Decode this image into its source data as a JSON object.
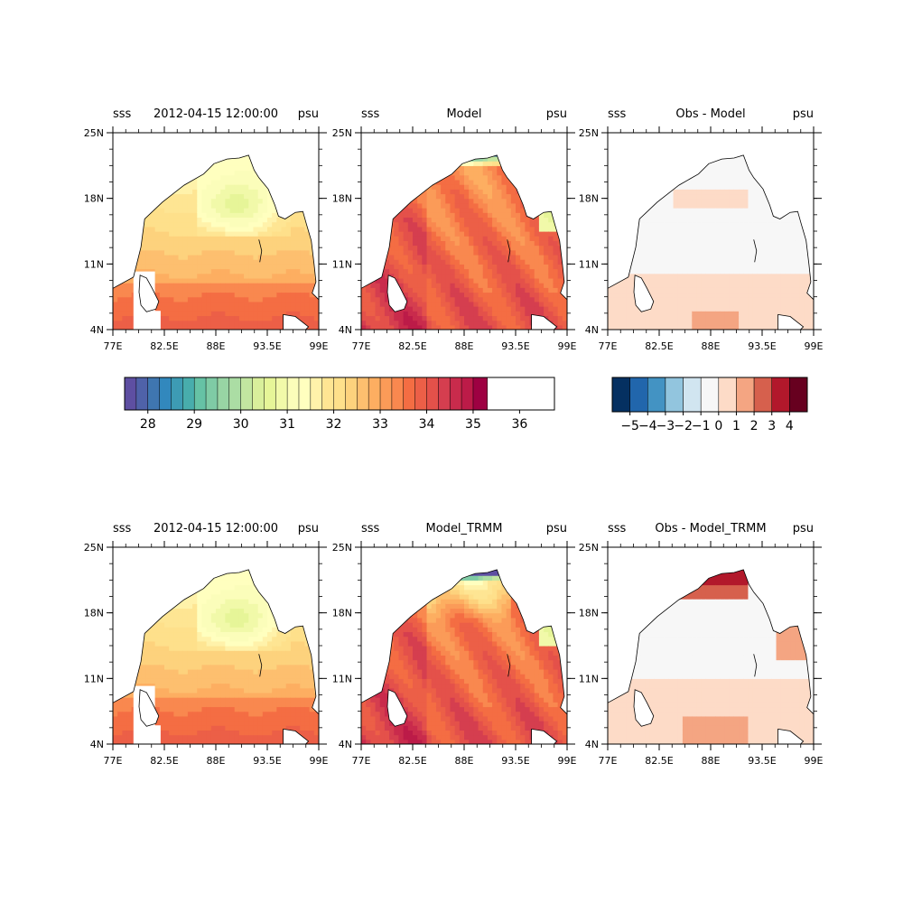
{
  "chart_data": {
    "type": "heatmap",
    "map": {
      "x_ticks": [
        "77E",
        "82.5E",
        "88E",
        "93.5E",
        "99E"
      ],
      "x_tick_values": [
        77,
        82.5,
        88,
        93.5,
        99
      ],
      "y_ticks": [
        "4N",
        "11N",
        "18N",
        "25N"
      ],
      "y_tick_values": [
        4,
        11,
        18,
        25
      ],
      "xlim": [
        77,
        99
      ],
      "ylim": [
        4,
        25
      ]
    },
    "panels": [
      {
        "id": "obs-top",
        "row": 0,
        "col": 0,
        "left_title": "sss",
        "center_title": "2012-04-15 12:00:00",
        "right_title": "psu",
        "field": "obs"
      },
      {
        "id": "model-top",
        "row": 0,
        "col": 1,
        "left_title": "sss",
        "center_title": "Model",
        "right_title": "psu",
        "field": "model"
      },
      {
        "id": "diff-top",
        "row": 0,
        "col": 2,
        "left_title": "sss",
        "center_title": "Obs - Model",
        "right_title": "psu",
        "field": "diff"
      },
      {
        "id": "obs-bottom",
        "row": 1,
        "col": 0,
        "left_title": "sss",
        "center_title": "2012-04-15 12:00:00",
        "right_title": "psu",
        "field": "obs"
      },
      {
        "id": "model-bottom",
        "row": 1,
        "col": 1,
        "left_title": "sss",
        "center_title": "Model_TRMM",
        "right_title": "psu",
        "field": "model_trmm"
      },
      {
        "id": "diff-bottom",
        "row": 1,
        "col": 2,
        "left_title": "sss",
        "center_title": "Obs - Model_TRMM",
        "right_title": "psu",
        "field": "diff_trmm"
      }
    ],
    "colorbars": [
      {
        "id": "sss-colorbar",
        "range": [
          27.5,
          36.75
        ],
        "step": 0.25,
        "tick_labels": [
          "28",
          "29",
          "30",
          "31",
          "32",
          "33",
          "34",
          "35",
          "36"
        ],
        "tick_values": [
          28,
          29,
          30,
          31,
          32,
          33,
          34,
          35,
          36
        ],
        "colors": [
          "#5e4fa2",
          "#4f62a9",
          "#3f76b0",
          "#3288bd",
          "#3d9bb4",
          "#48adac",
          "#66c2a5",
          "#7fcba5",
          "#98d5a4",
          "#abdda4",
          "#c2e6a0",
          "#d9ef9b",
          "#e6f598",
          "#f1f9a9",
          "#fbfdba",
          "#ffffbf",
          "#fff2aa",
          "#fee593",
          "#fee08b",
          "#fdd27d",
          "#fdbf6f",
          "#fdae61",
          "#fb9b58",
          "#f9884f",
          "#f46d43",
          "#ec5f47",
          "#e4514a",
          "#d53e4f",
          "#c92b4c",
          "#bc1b48",
          "#9e0142"
        ]
      },
      {
        "id": "diff-colorbar",
        "range": [
          -6,
          5
        ],
        "tick_labels": [
          "−5",
          "−4",
          "−3",
          "−2",
          "−1",
          "0",
          "1",
          "2",
          "3",
          "4"
        ],
        "tick_values": [
          -5,
          -4,
          -3,
          -2,
          -1,
          0,
          1,
          2,
          3,
          4
        ],
        "colors": [
          "#053061",
          "#2166ac",
          "#4393c3",
          "#92c5de",
          "#d1e5f0",
          "#f7f7f7",
          "#fddbc7",
          "#f4a582",
          "#d6604d",
          "#b2182b",
          "#67001f"
        ]
      }
    ]
  }
}
